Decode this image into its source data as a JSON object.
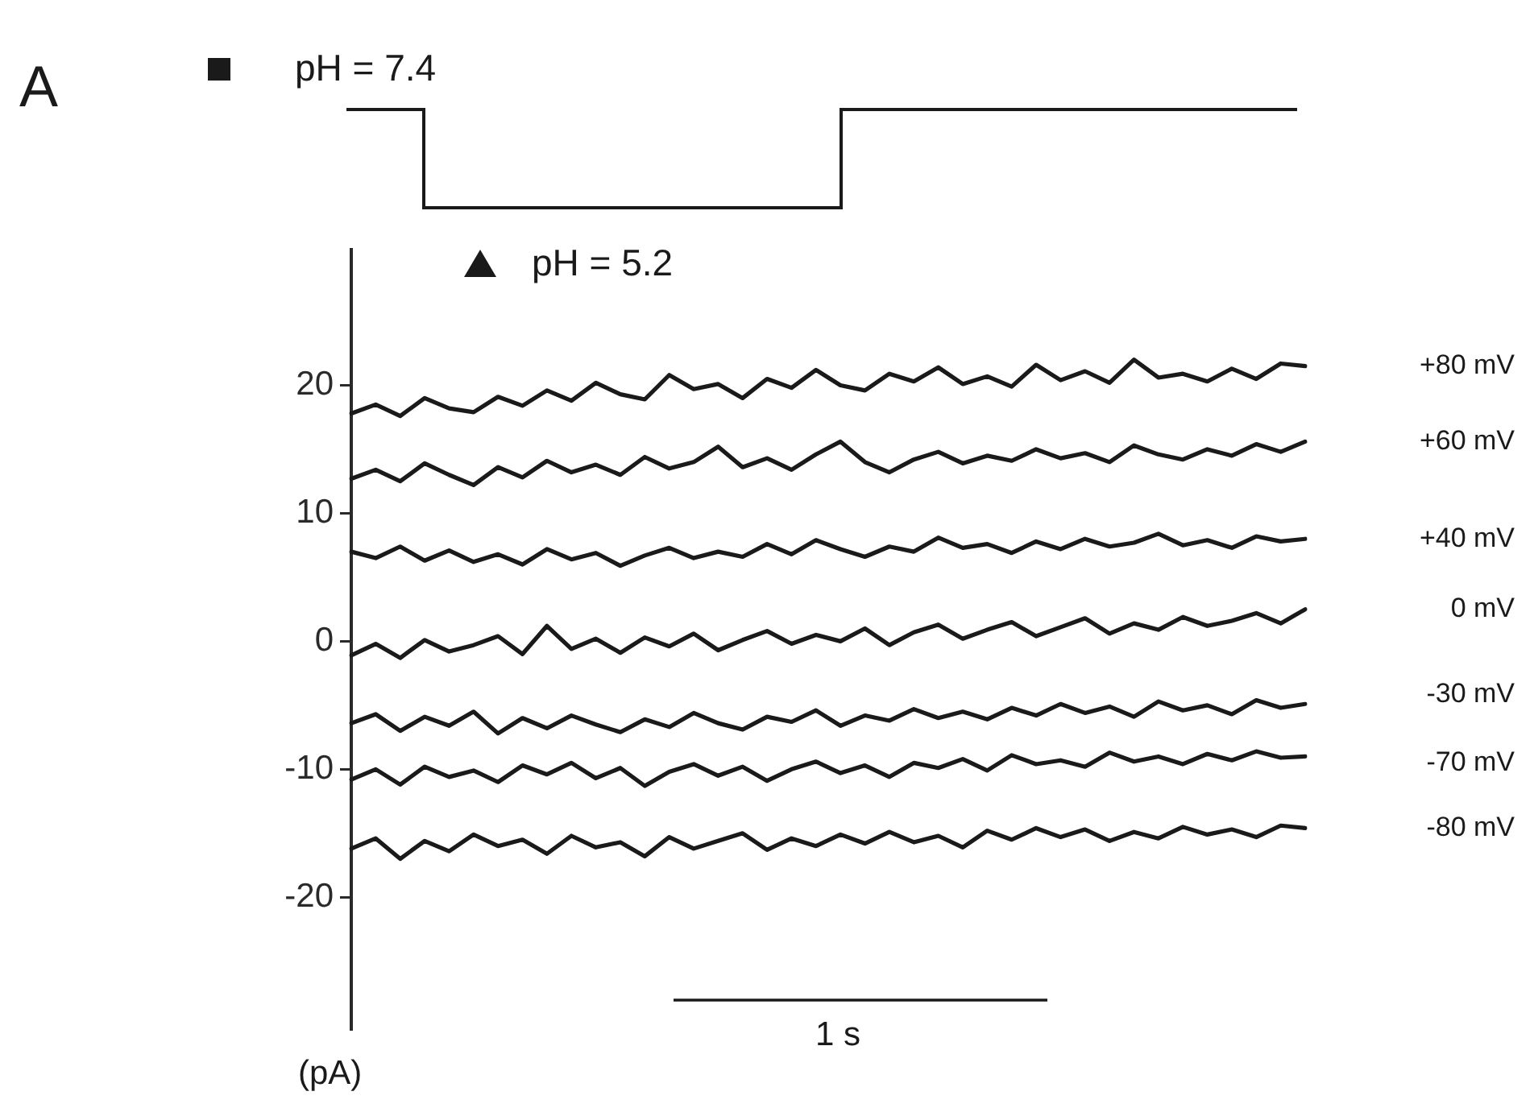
{
  "chart_data": {
    "type": "line",
    "ylabel": "(pA)",
    "annotations": [
      "A",
      "pH = 7.4",
      "pH = 5.2",
      "1 s"
    ],
    "categories": [
      null,
      null,
      null,
      null,
      null,
      null,
      null,
      null,
      null,
      null,
      null,
      null,
      null,
      null,
      null,
      null,
      null,
      null,
      null,
      null,
      null,
      null,
      null,
      null,
      null,
      null,
      null,
      null,
      null,
      null,
      null,
      null,
      null,
      null,
      null,
      null,
      null,
      null,
      null,
      null
    ],
    "ylim": [
      -30.3,
      30.6
    ],
    "yticks": [
      -20,
      -10,
      0,
      10,
      20
    ],
    "grid": false,
    "legend": false,
    "marker": "none",
    "line_style": "solid",
    "series": [
      {
        "name": "+80 mV",
        "color": "#1a1a1a",
        "values": [
          17.8,
          18.5,
          17.6,
          19.0,
          18.2,
          17.9,
          19.1,
          18.4,
          19.6,
          18.8,
          20.2,
          19.3,
          18.9,
          20.8,
          19.7,
          20.1,
          19.0,
          20.5,
          19.8,
          21.2,
          20.0,
          19.6,
          20.9,
          20.3,
          21.4,
          20.1,
          20.7,
          19.9,
          21.6,
          20.4,
          21.1,
          20.2,
          22.0,
          20.6,
          20.9,
          20.3,
          21.3,
          20.5,
          21.7,
          21.5
        ]
      },
      {
        "name": "+60 mV",
        "color": "#1a1a1a",
        "values": [
          12.7,
          13.4,
          12.5,
          13.9,
          13.0,
          12.2,
          13.6,
          12.8,
          14.1,
          13.2,
          13.8,
          13.0,
          14.4,
          13.5,
          14.0,
          15.2,
          13.6,
          14.3,
          13.4,
          14.6,
          15.6,
          14.0,
          13.2,
          14.2,
          14.8,
          13.9,
          14.5,
          14.1,
          15.0,
          14.3,
          14.7,
          14.0,
          15.3,
          14.6,
          14.2,
          15.0,
          14.5,
          15.4,
          14.8,
          15.6
        ]
      },
      {
        "name": "+40 mV",
        "color": "#1a1a1a",
        "values": [
          7.0,
          6.5,
          7.4,
          6.3,
          7.1,
          6.2,
          6.8,
          6.0,
          7.2,
          6.4,
          6.9,
          5.9,
          6.7,
          7.3,
          6.5,
          7.0,
          6.6,
          7.6,
          6.8,
          7.9,
          7.2,
          6.6,
          7.4,
          7.0,
          8.1,
          7.3,
          7.6,
          6.9,
          7.8,
          7.2,
          8.0,
          7.4,
          7.7,
          8.4,
          7.5,
          7.9,
          7.3,
          8.2,
          7.8,
          8.0
        ]
      },
      {
        "name": "0 mV",
        "color": "#1a1a1a",
        "values": [
          -1.1,
          -0.2,
          -1.3,
          0.1,
          -0.8,
          -0.3,
          0.4,
          -1.0,
          1.2,
          -0.6,
          0.2,
          -0.9,
          0.3,
          -0.4,
          0.6,
          -0.7,
          0.1,
          0.8,
          -0.2,
          0.5,
          0.0,
          1.0,
          -0.3,
          0.7,
          1.3,
          0.2,
          0.9,
          1.5,
          0.4,
          1.1,
          1.8,
          0.6,
          1.4,
          0.9,
          1.9,
          1.2,
          1.6,
          2.2,
          1.4,
          2.5
        ]
      },
      {
        "name": "-30 mV",
        "color": "#1a1a1a",
        "values": [
          -6.4,
          -5.7,
          -7.0,
          -5.9,
          -6.6,
          -5.5,
          -7.2,
          -6.0,
          -6.8,
          -5.8,
          -6.5,
          -7.1,
          -6.1,
          -6.7,
          -5.6,
          -6.4,
          -6.9,
          -5.9,
          -6.3,
          -5.4,
          -6.6,
          -5.8,
          -6.2,
          -5.3,
          -6.0,
          -5.5,
          -6.1,
          -5.2,
          -5.8,
          -4.9,
          -5.6,
          -5.1,
          -5.9,
          -4.7,
          -5.4,
          -5.0,
          -5.7,
          -4.6,
          -5.2,
          -4.9
        ]
      },
      {
        "name": "-70 mV",
        "color": "#1a1a1a",
        "values": [
          -10.8,
          -10.0,
          -11.2,
          -9.8,
          -10.6,
          -10.1,
          -11.0,
          -9.7,
          -10.4,
          -9.5,
          -10.7,
          -9.9,
          -11.3,
          -10.2,
          -9.6,
          -10.5,
          -9.8,
          -10.9,
          -10.0,
          -9.4,
          -10.3,
          -9.7,
          -10.6,
          -9.5,
          -9.9,
          -9.2,
          -10.1,
          -8.9,
          -9.6,
          -9.3,
          -9.8,
          -8.7,
          -9.4,
          -9.0,
          -9.6,
          -8.8,
          -9.3,
          -8.6,
          -9.1,
          -9.0
        ]
      },
      {
        "name": "-80 mV",
        "color": "#1a1a1a",
        "values": [
          -16.2,
          -15.4,
          -17.0,
          -15.6,
          -16.4,
          -15.1,
          -16.0,
          -15.5,
          -16.6,
          -15.2,
          -16.1,
          -15.7,
          -16.8,
          -15.3,
          -16.2,
          -15.6,
          -15.0,
          -16.3,
          -15.4,
          -16.0,
          -15.1,
          -15.8,
          -14.9,
          -15.7,
          -15.2,
          -16.1,
          -14.8,
          -15.5,
          -14.6,
          -15.3,
          -14.7,
          -15.6,
          -14.9,
          -15.4,
          -14.5,
          -15.1,
          -14.7,
          -15.3,
          -14.4,
          -14.6
        ]
      }
    ]
  }
}
